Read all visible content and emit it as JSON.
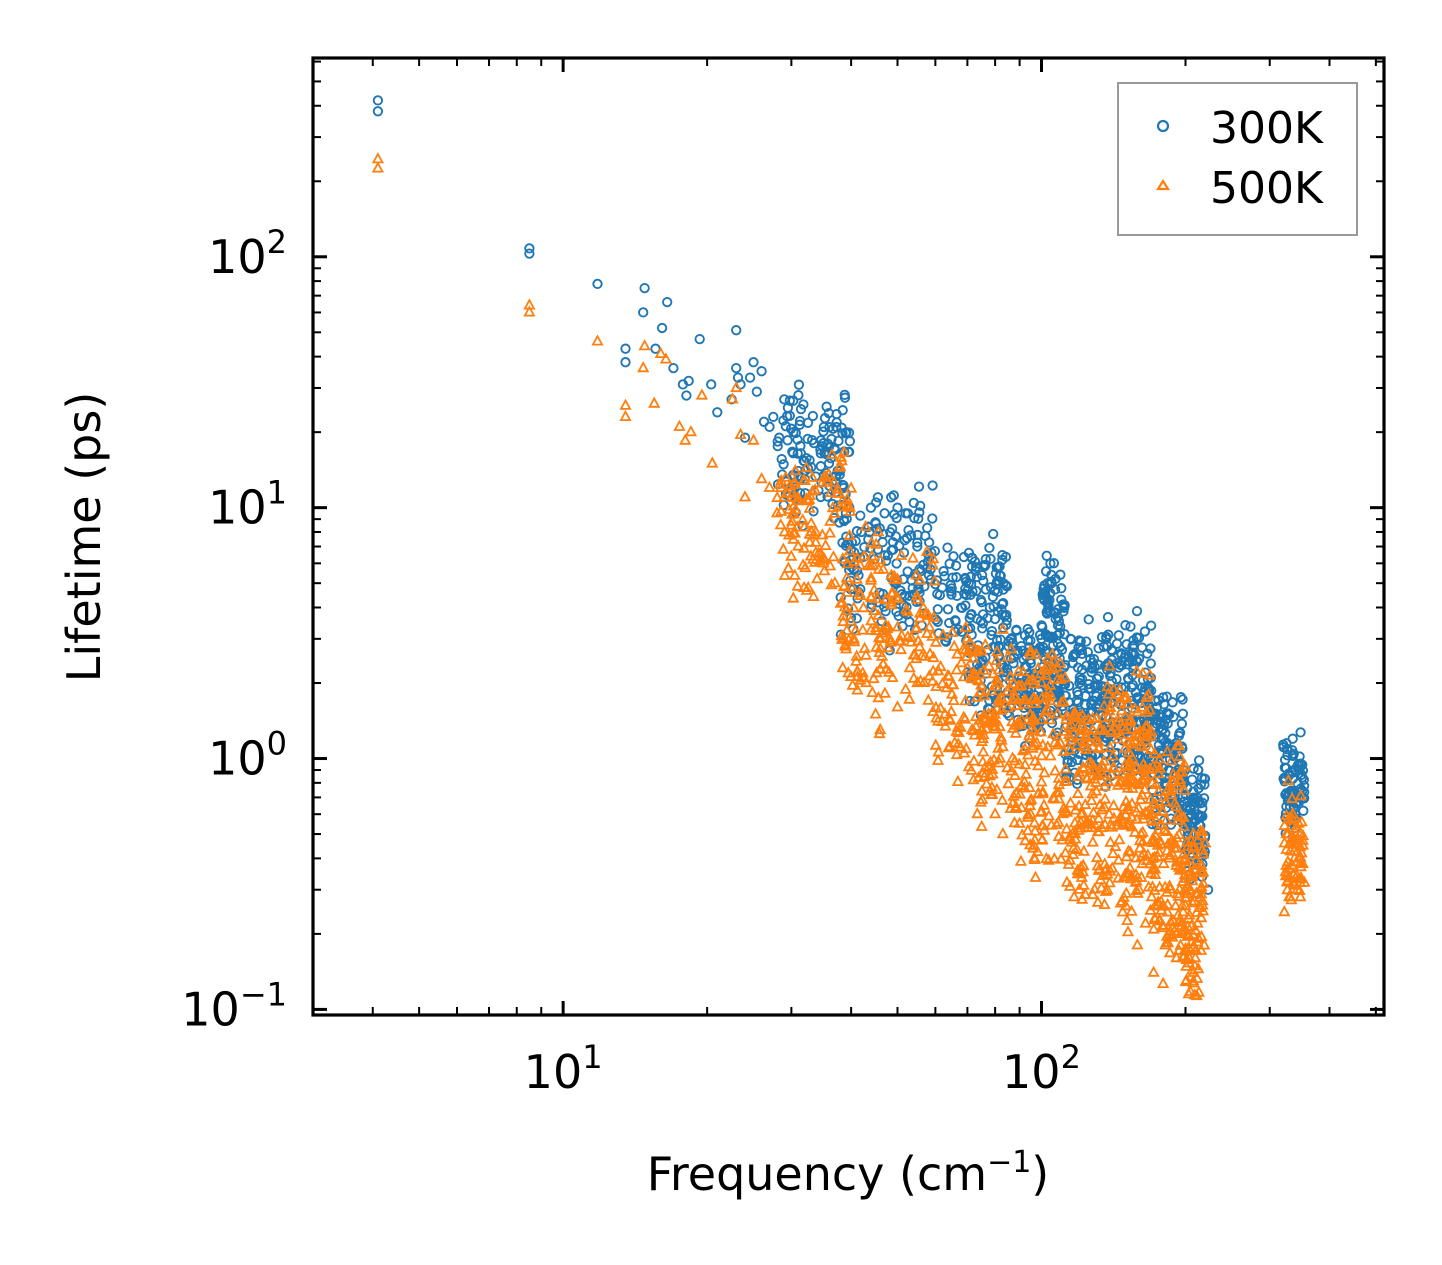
{
  "chart_data": {
    "type": "scatter",
    "xscale": "log",
    "yscale": "log",
    "xlim": [
      3.0,
      520
    ],
    "ylim": [
      0.095,
      620
    ],
    "xlabel": "Frequency (cm",
    "xlabel_sup": "−1",
    "xlabel_close": ")",
    "ylabel": "Lifetime (ps)",
    "xticks": [
      {
        "value": 10,
        "base": "10",
        "exp": "1"
      },
      {
        "value": 100,
        "base": "10",
        "exp": "2"
      }
    ],
    "yticks": [
      {
        "value": 0.1,
        "base": "10",
        "exp": "−1"
      },
      {
        "value": 1,
        "base": "10",
        "exp": "0"
      },
      {
        "value": 10,
        "base": "10",
        "exp": "1"
      },
      {
        "value": 100,
        "base": "10",
        "exp": "2"
      }
    ],
    "legend_position": "top-right",
    "series": [
      {
        "name": "300K",
        "marker": "circle",
        "color": "#1f77b4",
        "points": [
          [
            4.1,
            420
          ],
          [
            4.1,
            380
          ],
          [
            8.5,
            108
          ],
          [
            8.5,
            103
          ],
          [
            11.8,
            78
          ],
          [
            13.5,
            43
          ],
          [
            13.5,
            38
          ],
          [
            14.8,
            75
          ],
          [
            14.7,
            60
          ],
          [
            15.6,
            43
          ],
          [
            16.1,
            52
          ],
          [
            16.5,
            66
          ],
          [
            17.0,
            36
          ],
          [
            17.8,
            31
          ],
          [
            18.3,
            32
          ],
          [
            18.1,
            28
          ],
          [
            19.3,
            47
          ],
          [
            20.4,
            31
          ],
          [
            21.0,
            24
          ],
          [
            22.5,
            27
          ],
          [
            23.0,
            36
          ],
          [
            23.0,
            51
          ],
          [
            23.2,
            33
          ],
          [
            23.5,
            31
          ],
          [
            24.0,
            19
          ],
          [
            24.6,
            33
          ],
          [
            25.0,
            38
          ],
          [
            25.4,
            29
          ],
          [
            26.0,
            35
          ],
          [
            26.3,
            22
          ],
          [
            27.0,
            21
          ],
          [
            27.5,
            23
          ],
          [
            28.3,
            19
          ],
          [
            29.0,
            27
          ],
          [
            29.5,
            25
          ],
          [
            30.3,
            20
          ],
          [
            31.0,
            14
          ],
          [
            32.0,
            13
          ],
          [
            33.0,
            14.5
          ],
          [
            34.5,
            17
          ],
          [
            35.5,
            13
          ],
          [
            37.0,
            17
          ],
          [
            39.0,
            9.5
          ],
          [
            42.0,
            8
          ],
          [
            44.0,
            10
          ],
          [
            45.5,
            11
          ],
          [
            47.0,
            9.5
          ],
          [
            48.5,
            11
          ],
          [
            50.0,
            10
          ],
          [
            52.0,
            9.5
          ],
          [
            55.0,
            7
          ],
          [
            58.0,
            6.5
          ],
          [
            62.0,
            4.8
          ],
          [
            66.0,
            3.2
          ],
          [
            70.5,
            6.6
          ],
          [
            71.5,
            6.3
          ],
          [
            73.0,
            5.8
          ],
          [
            75.0,
            4.2
          ],
          [
            78.0,
            4.0
          ],
          [
            80.0,
            3.6
          ],
          [
            85.0,
            2.2
          ],
          [
            90.0,
            2.0
          ],
          [
            95.0,
            2.4
          ],
          [
            100.0,
            3.0
          ],
          [
            103.0,
            4.2
          ],
          [
            105.0,
            5.0
          ],
          [
            107.0,
            5.2
          ],
          [
            110.0,
            4.3
          ],
          [
            115.0,
            3.0
          ],
          [
            120.0,
            2.0
          ],
          [
            125.0,
            1.4
          ],
          [
            130.0,
            1.6
          ],
          [
            138.0,
            2.4
          ],
          [
            145.0,
            3.1
          ],
          [
            150.0,
            2.6
          ],
          [
            155.0,
            2.8
          ],
          [
            160.0,
            2.5
          ],
          [
            165.0,
            2.2
          ],
          [
            172.0,
            1.5
          ],
          [
            180.0,
            1.2
          ],
          [
            185.0,
            1.5
          ],
          [
            190.0,
            1.0
          ],
          [
            197.0,
            0.82
          ],
          [
            203.0,
            0.6
          ],
          [
            210.0,
            0.5
          ],
          [
            214.0,
            0.42
          ],
          [
            217.0,
            0.38
          ],
          [
            223.0,
            0.3
          ],
          [
            325.0,
            1.15
          ],
          [
            335.0,
            1.2
          ],
          [
            345.0,
            0.95
          ],
          [
            352.0,
            0.7
          ]
        ],
        "clusters": [
          [
            28,
            40,
            10,
            26,
            0.32,
            120
          ],
          [
            38,
            60,
            3.5,
            10,
            0.34,
            150
          ],
          [
            60,
            70,
            3.0,
            6.0,
            0.25,
            40
          ],
          [
            70,
            85,
            1.6,
            6.5,
            0.3,
            120
          ],
          [
            85,
            100,
            1.3,
            3.0,
            0.3,
            90
          ],
          [
            100,
            112,
            1.5,
            5.2,
            0.35,
            120
          ],
          [
            112,
            135,
            0.9,
            3.0,
            0.3,
            130
          ],
          [
            135,
            170,
            0.9,
            3.1,
            0.35,
            180
          ],
          [
            170,
            200,
            0.6,
            1.6,
            0.3,
            120
          ],
          [
            200,
            220,
            0.38,
            0.85,
            0.3,
            80
          ],
          [
            320,
            355,
            0.55,
            1.15,
            0.3,
            70
          ]
        ]
      },
      {
        "name": "500K",
        "marker": "triangle",
        "color": "#ff7f0e",
        "points": [
          [
            4.1,
            245
          ],
          [
            4.1,
            225
          ],
          [
            8.5,
            64
          ],
          [
            8.5,
            60
          ],
          [
            11.8,
            46
          ],
          [
            13.5,
            25.5
          ],
          [
            13.5,
            23
          ],
          [
            14.7,
            36
          ],
          [
            14.8,
            44
          ],
          [
            15.5,
            26
          ],
          [
            16.0,
            41
          ],
          [
            16.4,
            39
          ],
          [
            17.5,
            21
          ],
          [
            18.0,
            18.5
          ],
          [
            18.5,
            20
          ],
          [
            19.5,
            28
          ],
          [
            20.5,
            15
          ],
          [
            22.6,
            27
          ],
          [
            23.0,
            30
          ],
          [
            23.5,
            19.5
          ],
          [
            24.0,
            11
          ],
          [
            25.0,
            18.5
          ],
          [
            26.0,
            13
          ],
          [
            27.0,
            12
          ],
          [
            28.0,
            9.5
          ],
          [
            29.0,
            11
          ],
          [
            30.0,
            8.5
          ],
          [
            31.0,
            7.0
          ],
          [
            33.0,
            8.0
          ],
          [
            35.0,
            6.0
          ],
          [
            37.0,
            5.0
          ],
          [
            38.5,
            3.5
          ],
          [
            40.5,
            3.0
          ],
          [
            43.0,
            2.0
          ],
          [
            45.0,
            1.5
          ],
          [
            46.0,
            1.3
          ],
          [
            48.0,
            2.2
          ],
          [
            50.0,
            1.6
          ],
          [
            55.0,
            2.0
          ],
          [
            58.0,
            1.7
          ],
          [
            62.0,
            1.4
          ],
          [
            65.0,
            1.8
          ],
          [
            70.0,
            3.0
          ],
          [
            72.0,
            2.5
          ],
          [
            75.0,
            1.3
          ],
          [
            78.0,
            0.85
          ],
          [
            80.0,
            0.6
          ],
          [
            83.0,
            0.5
          ],
          [
            87.0,
            1.0
          ],
          [
            90.0,
            0.55
          ],
          [
            95.0,
            1.2
          ],
          [
            100.0,
            2.0
          ],
          [
            103.0,
            2.5
          ],
          [
            108.0,
            1.5
          ],
          [
            113.0,
            0.32
          ],
          [
            117.0,
            0.28
          ],
          [
            120.0,
            0.3
          ],
          [
            125.0,
            0.55
          ],
          [
            130.0,
            0.8
          ],
          [
            138.0,
            1.8
          ],
          [
            145.0,
            1.4
          ],
          [
            150.0,
            1.3
          ],
          [
            155.0,
            1.0
          ],
          [
            160.0,
            0.3
          ],
          [
            165.0,
            0.22
          ],
          [
            170.0,
            0.28
          ],
          [
            175.0,
            0.45
          ],
          [
            180.0,
            0.7
          ],
          [
            185.0,
            0.4
          ],
          [
            192.0,
            0.2
          ],
          [
            198.0,
            0.16
          ],
          [
            203.0,
            0.115
          ],
          [
            208.0,
            0.14
          ],
          [
            212.0,
            0.22
          ],
          [
            219.0,
            0.18
          ],
          [
            325.0,
            0.5
          ],
          [
            335.0,
            0.6
          ],
          [
            345.0,
            0.55
          ],
          [
            352.0,
            0.45
          ]
        ],
        "clusters": [
          [
            28,
            40,
            5.0,
            14,
            0.3,
            110
          ],
          [
            38,
            60,
            1.8,
            6.5,
            0.35,
            160
          ],
          [
            60,
            72,
            1.0,
            3.0,
            0.3,
            60
          ],
          [
            72,
            90,
            0.6,
            2.8,
            0.35,
            130
          ],
          [
            90,
            112,
            0.4,
            2.5,
            0.4,
            140
          ],
          [
            112,
            135,
            0.3,
            1.6,
            0.4,
            130
          ],
          [
            135,
            170,
            0.25,
            1.9,
            0.45,
            200
          ],
          [
            170,
            200,
            0.18,
            1.0,
            0.4,
            150
          ],
          [
            200,
            220,
            0.13,
            0.45,
            0.35,
            90
          ],
          [
            320,
            355,
            0.28,
            0.65,
            0.3,
            70
          ]
        ]
      }
    ]
  }
}
